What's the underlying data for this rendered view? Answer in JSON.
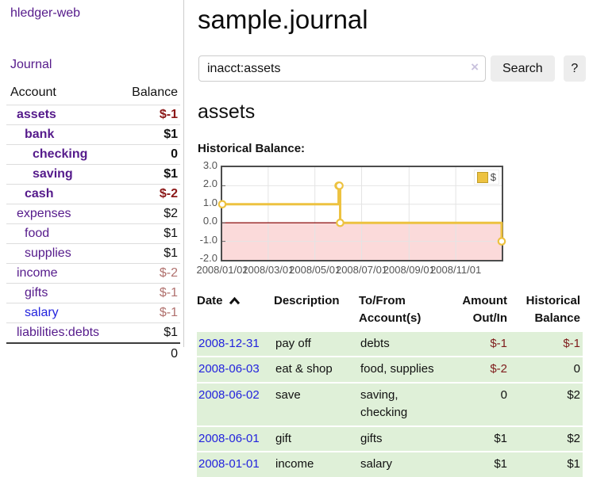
{
  "colors": {
    "link_visited_purple": "#551a8b",
    "link_blue": "#2323dd",
    "negative_strong": "#8b1717",
    "negative_muted": "#b0716e",
    "row_green": "#dff0d8",
    "chart_line_gold": "#edc240",
    "chart_negative_region": "#fbdada",
    "chart_zero_line": "#941f1f",
    "button_bg": "#ededed"
  },
  "sidebar": {
    "brand": "hledger-web",
    "nav_journal": "Journal",
    "accounts_headers": [
      "Account",
      "Balance"
    ],
    "accounts": [
      {
        "name": "assets",
        "balance": "$-1",
        "depth": 1,
        "in_account": true
      },
      {
        "name": "bank",
        "balance": "$1",
        "depth": 2,
        "in_account": true
      },
      {
        "name": "checking",
        "balance": "0",
        "depth": 3,
        "in_account": true
      },
      {
        "name": "saving",
        "balance": "$1",
        "depth": 3,
        "in_account": true
      },
      {
        "name": "cash",
        "balance": "$-2",
        "depth": 2,
        "in_account": true
      },
      {
        "name": "expenses",
        "balance": "$2",
        "depth": 1
      },
      {
        "name": "food",
        "balance": "$1",
        "depth": 2
      },
      {
        "name": "supplies",
        "balance": "$1",
        "depth": 2
      },
      {
        "name": "income",
        "balance": "$-2",
        "depth": 1
      },
      {
        "name": "gifts",
        "balance": "$-1",
        "depth": 2
      },
      {
        "name": "salary",
        "balance": "$-1",
        "depth": 2,
        "link_style": "unvisited"
      },
      {
        "name": "liabilities:debts",
        "balance": "$1",
        "depth": 1
      }
    ],
    "total": "0"
  },
  "main": {
    "title": "sample.journal",
    "search": {
      "value": "inacct:assets",
      "clear_icon": "×",
      "button_label": "Search",
      "help_label": "?"
    },
    "account_heading": "assets",
    "section_label": "Historical Balance:"
  },
  "chart_data": {
    "type": "line",
    "line_style": "step",
    "title": "Historical Balance",
    "x_start": "2008/01/01",
    "x_end": "2008/12/31",
    "ylim": [
      -2,
      3
    ],
    "y_ticks": [
      3.0,
      2.0,
      1.0,
      0.0,
      -1.0,
      -2.0
    ],
    "x_ticks": [
      "2008/01/01",
      "2008/03/01",
      "2008/05/01",
      "2008/07/01",
      "2008/09/01",
      "2008/11/01"
    ],
    "series": [
      {
        "name": "$",
        "color": "#edc240",
        "points": [
          [
            "2008/01/01",
            1
          ],
          [
            "2008/06/01",
            2
          ],
          [
            "2008/06/02",
            2
          ],
          [
            "2008/06/03",
            0
          ],
          [
            "2008/12/31",
            -1
          ]
        ]
      }
    ],
    "legend_position": "top-right",
    "grid": true,
    "negative_region_color": "#fbdada",
    "zero_line_color": "#941f1f"
  },
  "transactions": {
    "headers": [
      "Date",
      "Description",
      "To/From Account(s)",
      "Amount Out/In",
      "Historical Balance"
    ],
    "sort_icon": "chevron-up",
    "rows": [
      {
        "date": "2008-12-31",
        "description": "pay off",
        "accounts": "debts",
        "amount": "$-1",
        "balance": "$-1"
      },
      {
        "date": "2008-06-03",
        "description": "eat & shop",
        "accounts": "food, supplies",
        "amount": "$-2",
        "balance": "0"
      },
      {
        "date": "2008-06-02",
        "description": "save",
        "accounts": "saving, checking",
        "amount": "0",
        "balance": "$2"
      },
      {
        "date": "2008-06-01",
        "description": "gift",
        "accounts": "gifts",
        "amount": "$1",
        "balance": "$2"
      },
      {
        "date": "2008-01-01",
        "description": "income",
        "accounts": "salary",
        "amount": "$1",
        "balance": "$1"
      }
    ]
  }
}
